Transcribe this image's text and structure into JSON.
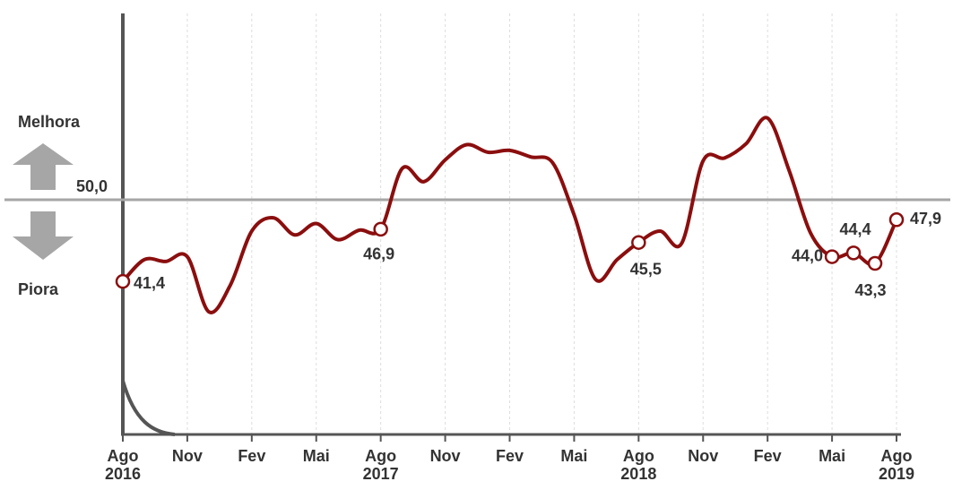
{
  "chart_data": {
    "type": "line",
    "categories": [
      "Ago 2016",
      null,
      null,
      "Nov",
      null,
      null,
      "Fev",
      null,
      null,
      "Mai",
      null,
      null,
      "Ago 2017",
      null,
      null,
      "Nov",
      null,
      null,
      "Fev",
      null,
      null,
      "Mai",
      null,
      null,
      "Ago 2018",
      null,
      null,
      "Nov",
      null,
      null,
      "Fev",
      null,
      null,
      "Mai",
      null,
      null,
      "Ago 2019"
    ],
    "series": [
      {
        "color": "#8b0e0e",
        "values": [
          41.4,
          43.7,
          43.5,
          44.0,
          38.2,
          41.0,
          46.7,
          48.1,
          46.3,
          47.5,
          45.8,
          46.8,
          46.9,
          53.3,
          51.9,
          54.2,
          55.8,
          55.0,
          55.2,
          54.5,
          53.9,
          48.4,
          41.6,
          43.7,
          45.5,
          46.7,
          45.4,
          54.1,
          54.4,
          55.9,
          58.6,
          53.1,
          46.5,
          44.0,
          44.4,
          43.3,
          47.9
        ],
        "value_labels": [
          "41,4",
          null,
          null,
          null,
          null,
          null,
          null,
          null,
          null,
          null,
          null,
          null,
          "46,9",
          null,
          null,
          null,
          null,
          null,
          null,
          null,
          null,
          null,
          null,
          null,
          "45,5",
          null,
          null,
          null,
          null,
          null,
          null,
          null,
          null,
          "44,0",
          "44,4",
          "43,3",
          "47,9"
        ]
      }
    ],
    "ylim": [
      25,
      70
    ],
    "yticks": [
      {
        "value": 50,
        "label": "50,0"
      }
    ],
    "grid": true,
    "annotations": [
      "Melhora",
      "Piora"
    ]
  }
}
